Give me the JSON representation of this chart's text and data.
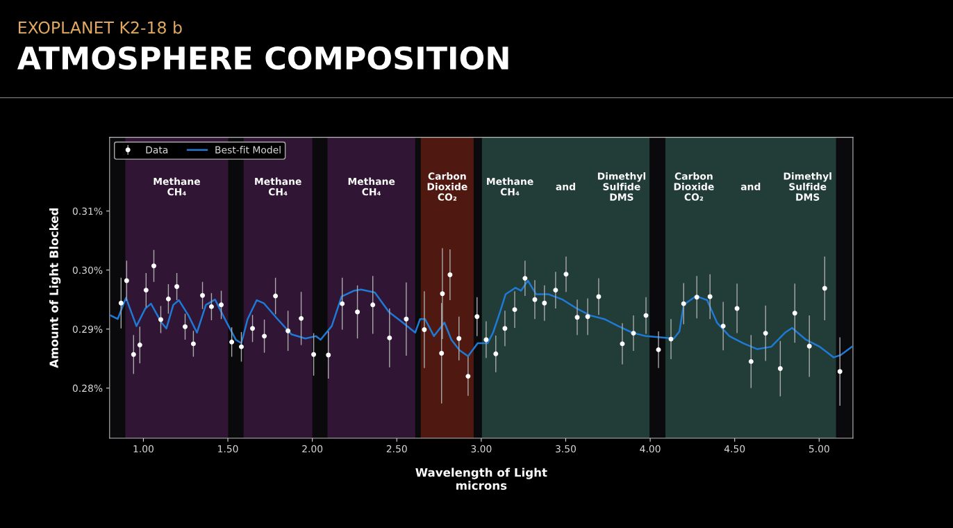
{
  "chart_data": {
    "type": "scatter",
    "subtitle": "EXOPLANET K2-18 b",
    "title": "ATMOSPHERE COMPOSITION",
    "xlabel": "Wavelength of Light\nmicrons",
    "ylabel": "Amount of Light Blocked",
    "xlim": [
      0.8,
      5.2
    ],
    "ylim": [
      0.2715,
      0.3225
    ],
    "xticks": [
      {
        "value": 1,
        "label": "1.00"
      },
      {
        "value": 1.5,
        "label": "1.50"
      },
      {
        "value": 2,
        "label": "2.00"
      },
      {
        "value": 2.5,
        "label": "2.50"
      },
      {
        "value": 3,
        "label": "3.00"
      },
      {
        "value": 3.5,
        "label": "3.50"
      },
      {
        "value": 4,
        "label": "4.00"
      },
      {
        "value": 4.5,
        "label": "4.50"
      },
      {
        "value": 5,
        "label": "5.00"
      }
    ],
    "yticks": [
      {
        "value": 0.28,
        "label": "0.28%"
      },
      {
        "value": 0.29,
        "label": "0.29%"
      },
      {
        "value": 0.3,
        "label": "0.30%"
      },
      {
        "value": 0.31,
        "label": "0.31%"
      }
    ],
    "grid": false,
    "legend": "top left",
    "bands": [
      {
        "axis": "x",
        "from": 0.893,
        "to": 1.502,
        "color": "#7a2a80",
        "label": [
          "Methane\nCH₄"
        ]
      },
      {
        "axis": "x",
        "from": 1.593,
        "to": 2.0,
        "color": "#7a2a80",
        "label": [
          "Methane\nCH₄"
        ]
      },
      {
        "axis": "x",
        "from": 2.09,
        "to": 2.609,
        "color": "#7a2a80",
        "label": [
          "Methane\nCH₄"
        ]
      },
      {
        "axis": "x",
        "from": 2.642,
        "to": 2.955,
        "color": "#d0361c",
        "label": [
          "Carbon\nDioxide\nCO₂"
        ]
      },
      {
        "axis": "x",
        "from": 3.004,
        "to": 3.996,
        "color": "#4f9e8a",
        "label": [
          "Methane\nCH₄",
          "and",
          "Dimethyl\nSulfide\nDMS"
        ]
      },
      {
        "axis": "x",
        "from": 4.09,
        "to": 5.1,
        "color": "#4f9e8a",
        "label": [
          "Carbon\nDioxide\nCO₂",
          "and",
          "Dimethyl\nSulfide\nDMS"
        ]
      }
    ],
    "series": [
      {
        "name": "Data",
        "color": "#ffffff",
        "marker": "circle",
        "x": [
          0.868,
          0.901,
          0.942,
          0.979,
          1.016,
          1.062,
          1.103,
          1.148,
          1.198,
          1.247,
          1.296,
          1.35,
          1.403,
          1.461,
          1.523,
          1.58,
          1.646,
          1.716,
          1.782,
          1.856,
          1.934,
          2.008,
          2.095,
          2.177,
          2.267,
          2.358,
          2.457,
          2.556,
          2.663,
          2.765,
          2.77,
          2.815,
          2.868,
          2.922,
          2.975,
          3.029,
          3.086,
          3.14,
          3.198,
          3.259,
          3.317,
          3.374,
          3.44,
          3.502,
          3.568,
          3.63,
          3.695,
          3.835,
          3.901,
          3.975,
          4.049,
          4.123,
          4.198,
          4.276,
          4.354,
          4.432,
          4.514,
          4.597,
          4.683,
          4.77,
          4.856,
          4.942,
          5.033,
          5.123
        ],
        "values": [
          0.2944,
          0.2982,
          0.2857,
          0.2873,
          0.2966,
          0.3007,
          0.2916,
          0.2951,
          0.2972,
          0.2904,
          0.2875,
          0.2957,
          0.2938,
          0.2941,
          0.2878,
          0.287,
          0.2901,
          0.2888,
          0.2956,
          0.2897,
          0.2918,
          0.2857,
          0.2856,
          0.2943,
          0.2929,
          0.2941,
          0.2885,
          0.2917,
          0.2899,
          0.2859,
          0.296,
          0.2992,
          0.2884,
          0.282,
          0.2921,
          0.2882,
          0.2858,
          0.2901,
          0.2933,
          0.2986,
          0.295,
          0.2944,
          0.2966,
          0.2993,
          0.292,
          0.2921,
          0.2955,
          0.2875,
          0.2893,
          0.2923,
          0.2865,
          0.2883,
          0.2943,
          0.2954,
          0.2955,
          0.2905,
          0.2935,
          0.2845,
          0.2893,
          0.2833,
          0.2927,
          0.2871,
          0.2969,
          0.2828
        ],
        "errors": [
          0.0043,
          0.0034,
          0.0033,
          0.0031,
          0.0029,
          0.0027,
          0.0023,
          0.0025,
          0.0023,
          0.0022,
          0.0022,
          0.0023,
          0.0023,
          0.0024,
          0.0025,
          0.0025,
          0.0023,
          0.0028,
          0.0031,
          0.0034,
          0.0045,
          0.0036,
          0.004,
          0.0044,
          0.0045,
          0.0049,
          0.005,
          0.0062,
          0.0065,
          0.0085,
          0.0077,
          0.0043,
          0.0037,
          0.0033,
          0.0033,
          0.0031,
          0.0031,
          0.003,
          0.0031,
          0.003,
          0.0033,
          0.003,
          0.0031,
          0.003,
          0.003,
          0.0031,
          0.0031,
          0.0035,
          0.003,
          0.0031,
          0.0031,
          0.0034,
          0.0035,
          0.0036,
          0.0038,
          0.0041,
          0.0042,
          0.0045,
          0.0047,
          0.0047,
          0.005,
          0.0052,
          0.0054,
          0.0058
        ]
      },
      {
        "name": "Best-fit Model",
        "type": "line",
        "color": "#1f7ad6",
        "line_style": "solid",
        "x": [
          0.807,
          0.848,
          0.897,
          0.959,
          1.012,
          1.045,
          1.107,
          1.136,
          1.177,
          1.21,
          1.267,
          1.317,
          1.37,
          1.424,
          1.486,
          1.547,
          1.58,
          1.617,
          1.671,
          1.712,
          1.794,
          1.877,
          1.959,
          2.021,
          2.049,
          2.115,
          2.173,
          2.247,
          2.288,
          2.37,
          2.453,
          2.535,
          2.609,
          2.638,
          2.667,
          2.72,
          2.782,
          2.823,
          2.872,
          2.922,
          2.979,
          3.037,
          3.07,
          3.111,
          3.144,
          3.202,
          3.235,
          3.276,
          3.325,
          3.399,
          3.481,
          3.564,
          3.646,
          3.728,
          3.811,
          3.893,
          3.975,
          4.058,
          4.14,
          4.173,
          4.198,
          4.272,
          4.337,
          4.395,
          4.469,
          4.551,
          4.634,
          4.716,
          4.798,
          4.84,
          4.922,
          5.004,
          5.086,
          5.128,
          5.193
        ],
        "values": [
          0.2923,
          0.2917,
          0.2953,
          0.2905,
          0.2935,
          0.2943,
          0.2911,
          0.2901,
          0.2941,
          0.2949,
          0.2923,
          0.2894,
          0.2941,
          0.295,
          0.2915,
          0.2882,
          0.2876,
          0.2917,
          0.2949,
          0.2944,
          0.2917,
          0.2891,
          0.2884,
          0.2888,
          0.2882,
          0.2905,
          0.2955,
          0.2965,
          0.2967,
          0.2962,
          0.2929,
          0.2911,
          0.2894,
          0.2917,
          0.2917,
          0.2888,
          0.2911,
          0.2882,
          0.2864,
          0.2854,
          0.2876,
          0.2876,
          0.2894,
          0.2929,
          0.2959,
          0.297,
          0.2965,
          0.2982,
          0.2959,
          0.2959,
          0.295,
          0.2935,
          0.2923,
          0.2917,
          0.2905,
          0.2894,
          0.2888,
          0.2886,
          0.2884,
          0.2896,
          0.2941,
          0.2956,
          0.2949,
          0.2911,
          0.2888,
          0.2876,
          0.2866,
          0.287,
          0.2894,
          0.2902,
          0.2882,
          0.287,
          0.2852,
          0.2856,
          0.287
        ]
      }
    ]
  }
}
